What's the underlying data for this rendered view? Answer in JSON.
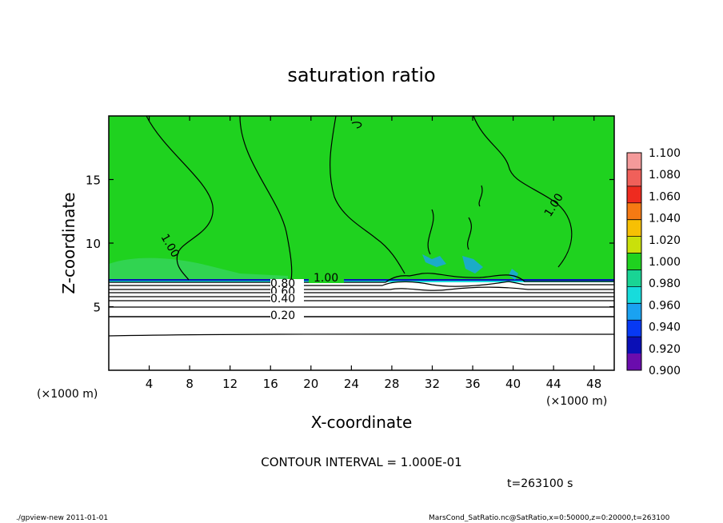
{
  "chart_data": {
    "type": "heatmap",
    "title": "saturation ratio",
    "xlabel": "X-coordinate",
    "ylabel": "Z-coordinate",
    "x_unit": "(×1000 m)",
    "y_unit": "(×1000 m)",
    "xlim": [
      0,
      50
    ],
    "ylim": [
      0,
      20
    ],
    "x_ticks": [
      4,
      8,
      12,
      16,
      20,
      24,
      28,
      32,
      36,
      40,
      44,
      48
    ],
    "y_ticks": [
      5,
      10,
      15
    ],
    "colorbar": {
      "labels": [
        "1.100",
        "1.080",
        "1.060",
        "1.040",
        "1.020",
        "1.000",
        "0.980",
        "0.960",
        "0.940",
        "0.920",
        "0.900"
      ],
      "colors": [
        "#f49a9a",
        "#f0605a",
        "#ee2b1f",
        "#f67a13",
        "#f7c004",
        "#c9e00b",
        "#1fd21f",
        "#19d494",
        "#17dcdc",
        "#1aa2f1",
        "#0739f3",
        "#0a0fb6",
        "#6a0cad"
      ]
    },
    "contours": [
      {
        "level": "1.00",
        "labels": 3
      },
      {
        "level": "0.80"
      },
      {
        "level": "0.60"
      },
      {
        "level": "0.40"
      },
      {
        "level": "0.20"
      }
    ],
    "contour_interval": "CONTOUR INTERVAL = 1.000E-01",
    "time_label": "t=263100 s"
  },
  "footer": {
    "left": "./gpview-new   2011-01-01",
    "right": "MarsCond_SatRatio.nc@SatRatio,x=0:50000,z=0:20000,t=263100"
  }
}
